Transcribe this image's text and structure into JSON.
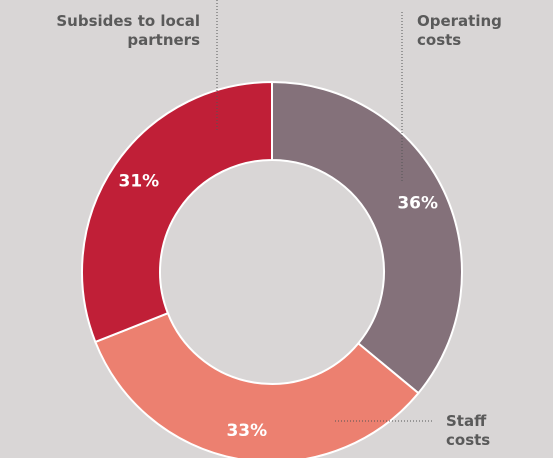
{
  "chart_data": {
    "type": "donut",
    "categories": [
      "Operating costs",
      "Staff costs",
      "Subsides to local partners"
    ],
    "values": [
      36,
      33,
      31
    ],
    "value_labels": [
      "36%",
      "33%",
      "31%"
    ],
    "colors": [
      "#84717a",
      "#ec8070",
      "#c01f37"
    ]
  }
}
